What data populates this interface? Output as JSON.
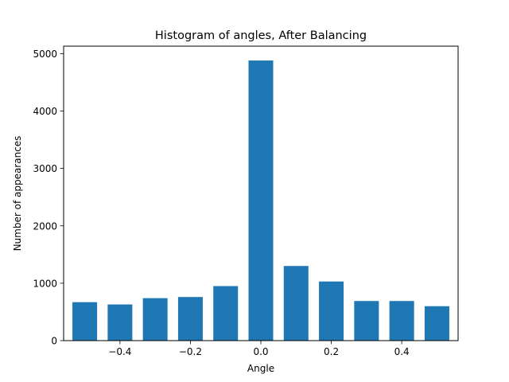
{
  "chart_data": {
    "type": "bar",
    "title": "Histogram of angles, After Balancing",
    "xlabel": "Angle",
    "ylabel": "Number of appearances",
    "x": [
      -0.5,
      -0.4,
      -0.3,
      -0.2,
      -0.1,
      0.0,
      0.1,
      0.2,
      0.3,
      0.4,
      0.5
    ],
    "values": [
      670,
      630,
      740,
      760,
      950,
      4880,
      1300,
      1030,
      690,
      690,
      600
    ],
    "bar_width": 0.07,
    "xlim": [
      -0.56,
      0.56
    ],
    "ylim": [
      0,
      5130
    ],
    "xticks": [
      -0.4,
      -0.2,
      0.0,
      0.2,
      0.4
    ],
    "xtick_labels": [
      "−0.4",
      "−0.2",
      "0.0",
      "0.2",
      "0.4"
    ],
    "yticks": [
      0,
      1000,
      2000,
      3000,
      4000,
      5000
    ],
    "ytick_labels": [
      "0",
      "1000",
      "2000",
      "3000",
      "4000",
      "5000"
    ],
    "bar_color": "#1f77b4",
    "grid": false,
    "legend": "none"
  }
}
